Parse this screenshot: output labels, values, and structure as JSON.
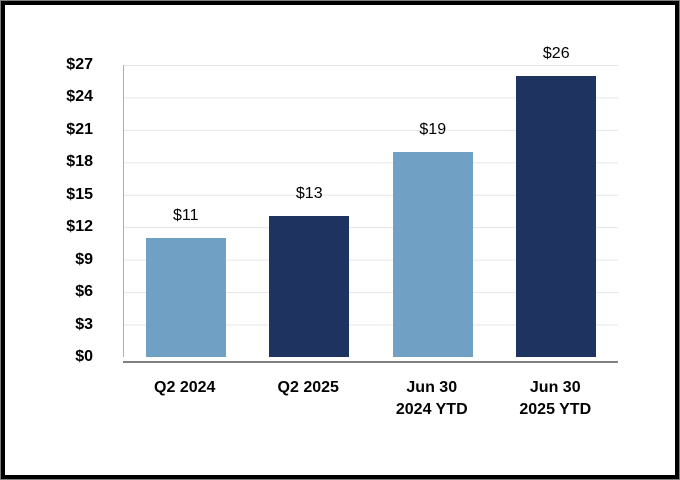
{
  "chart_data": {
    "type": "bar",
    "title": "",
    "categories": [
      "Q2 2024",
      "Q2 2025",
      "Jun 30\n2024 YTD",
      "Jun 30\n2025 YTD"
    ],
    "values": [
      11,
      13,
      19,
      26
    ],
    "data_labels": [
      "$11",
      "$13",
      "$19",
      "$26"
    ],
    "y_tick_labels": [
      "$27",
      "$24",
      "$21",
      "$18",
      "$15",
      "$12",
      "$9",
      "$6",
      "$3",
      "$0"
    ],
    "ylim": [
      0,
      27
    ],
    "y_tick_step": 3,
    "grid": true,
    "legend": "none",
    "series_colors": [
      "#70A1C4",
      "#1F3360",
      "#70A1C4",
      "#1F3360"
    ],
    "axis_color": "#808080",
    "frame_border_color": "#000000"
  }
}
